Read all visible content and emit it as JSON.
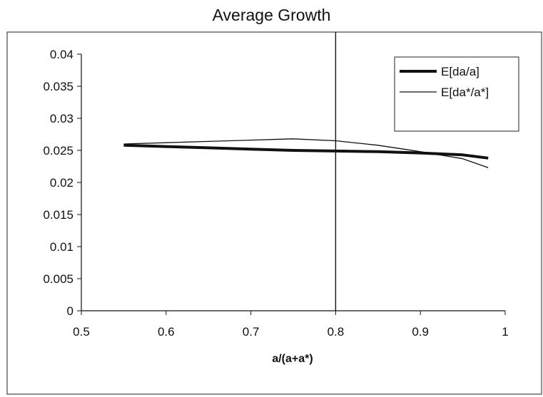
{
  "chart_data": {
    "type": "line",
    "title": "Average Growth",
    "xlabel": "a/(a+a*)",
    "ylabel": "",
    "xlim": [
      0.5,
      1
    ],
    "ylim": [
      0,
      0.04
    ],
    "x_ticks": [
      "0.5",
      "0.6",
      "0.7",
      "0.8",
      "0.9",
      "1"
    ],
    "y_ticks": [
      "0",
      "0.005",
      "0.01",
      "0.015",
      "0.02",
      "0.025",
      "0.03",
      "0.035",
      "0.04"
    ],
    "x_tick_values": [
      0.5,
      0.6,
      0.7,
      0.8,
      0.9,
      1.0
    ],
    "y_tick_values": [
      0,
      0.005,
      0.01,
      0.015,
      0.02,
      0.025,
      0.03,
      0.035,
      0.04
    ],
    "grid": false,
    "legend_position": "top-right",
    "reference_line_x": 0.8,
    "series": [
      {
        "name": "E[da/a]",
        "color": "#111111",
        "style": "thick",
        "x": [
          0.55,
          0.6,
          0.65,
          0.7,
          0.75,
          0.8,
          0.85,
          0.9,
          0.95,
          0.98
        ],
        "y": [
          0.0258,
          0.0256,
          0.0254,
          0.0252,
          0.025,
          0.0249,
          0.0248,
          0.0246,
          0.0243,
          0.0238
        ]
      },
      {
        "name": "E[da*/a*]",
        "color": "#111111",
        "style": "thin",
        "x": [
          0.55,
          0.6,
          0.65,
          0.7,
          0.75,
          0.8,
          0.85,
          0.9,
          0.95,
          0.98
        ],
        "y": [
          0.026,
          0.0262,
          0.0264,
          0.0266,
          0.0268,
          0.0265,
          0.0258,
          0.0248,
          0.0237,
          0.0223
        ]
      }
    ]
  }
}
